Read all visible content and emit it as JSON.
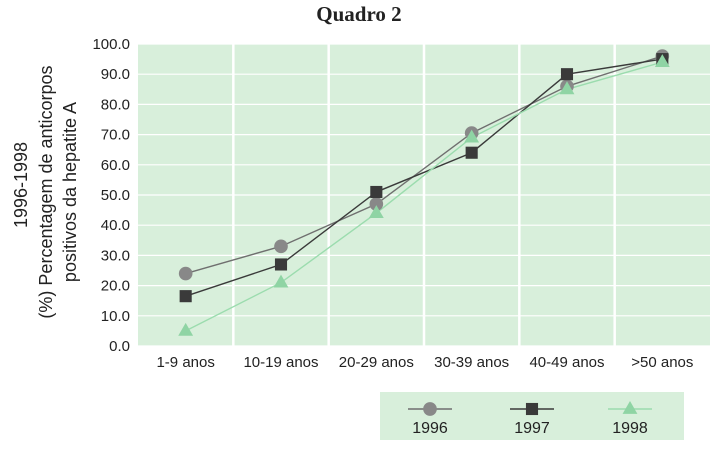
{
  "chart_data": {
    "type": "line",
    "title": "Quadro 2",
    "ylabel_lines": [
      "1996-1998",
      "(%) Percentagem de anticorpos",
      "positivos da hepatite A"
    ],
    "categories": [
      "1-9 anos",
      "10-19 anos",
      "20-29 anos",
      "30-39 anos",
      "40-49 anos",
      ">50 anos"
    ],
    "ylim": [
      0,
      100
    ],
    "yticks": [
      "0.0",
      "10.0",
      "20.0",
      "30.0",
      "40.0",
      "50.0",
      "60.0",
      "70.0",
      "80.0",
      "90.0",
      "100.0"
    ],
    "grid": true,
    "legend_position": "bottom-right",
    "series": [
      {
        "name": "1996",
        "marker": "circle",
        "color": "#888888",
        "line_color": "#6f6f6f",
        "values": [
          24,
          33,
          47,
          70.5,
          86,
          96
        ]
      },
      {
        "name": "1997",
        "marker": "square",
        "color": "#3a3a3a",
        "line_color": "#3a3a3a",
        "values": [
          16.5,
          27,
          51,
          64,
          90,
          95
        ]
      },
      {
        "name": "1998",
        "marker": "triangle",
        "color": "#8fd4a4",
        "line_color": "#9bdcae",
        "values": [
          5,
          21,
          44,
          69,
          85,
          94
        ]
      }
    ],
    "colors": {
      "plot_background": "#d8efdb",
      "gridline": "#ffffff",
      "legend_background": "#d8efdb"
    }
  }
}
